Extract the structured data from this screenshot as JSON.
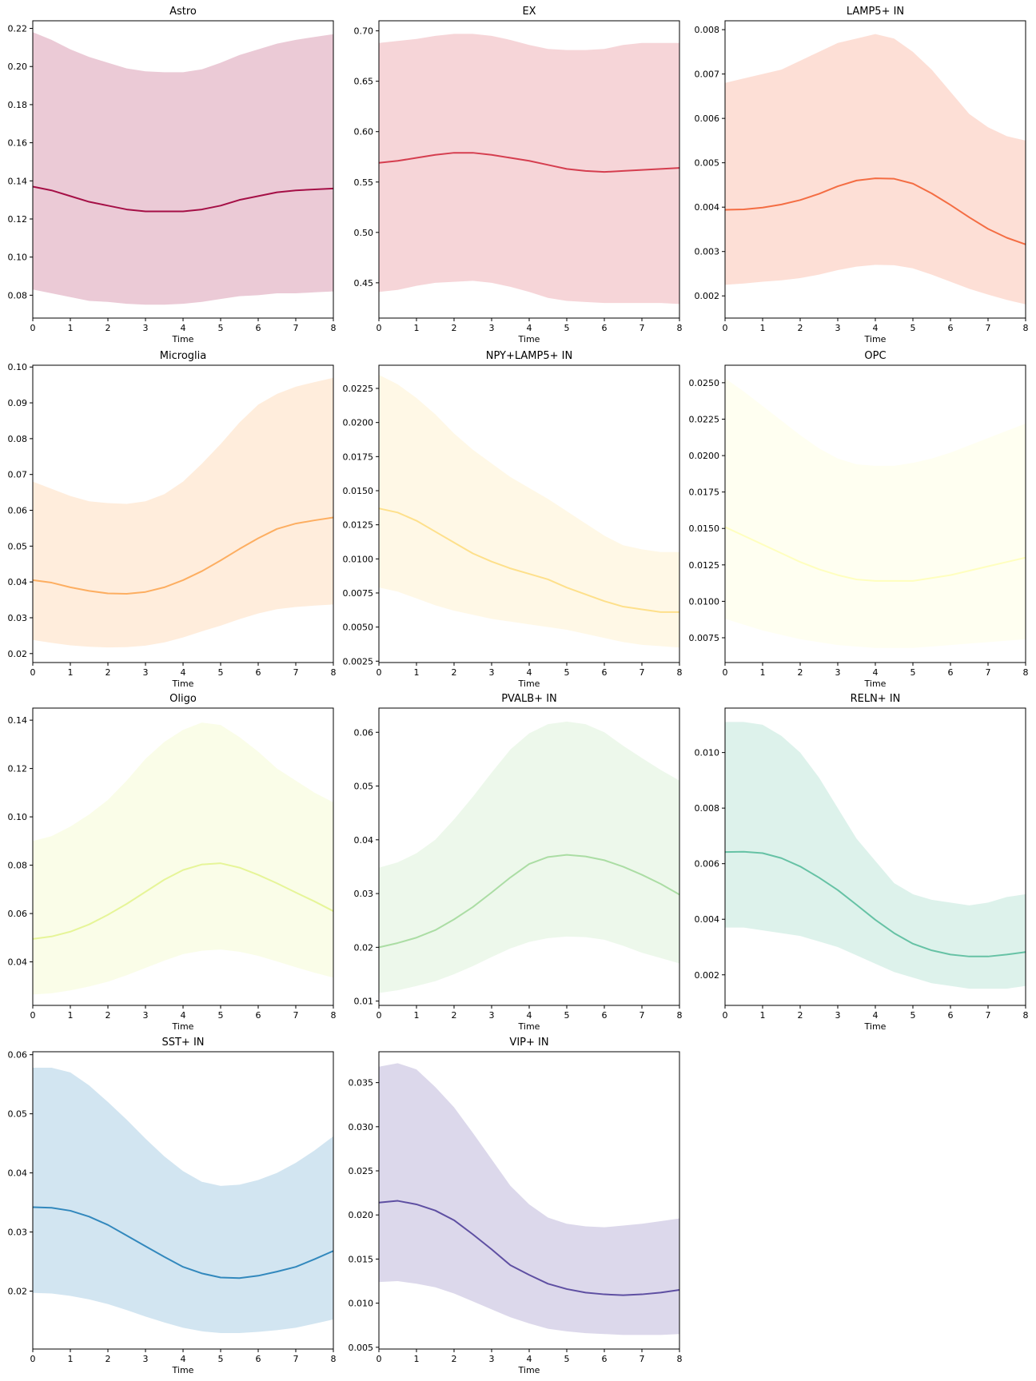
{
  "chart_data": [
    {
      "type": "line",
      "title": "Astro",
      "xlabel": "Time",
      "ylabel": "",
      "color": "#a50f46",
      "xlim": [
        0,
        8
      ],
      "ylim": [
        0.068,
        0.224
      ],
      "xticks": [
        0,
        1,
        2,
        3,
        4,
        5,
        6,
        7,
        8
      ],
      "yticks": [
        0.08,
        0.1,
        0.12,
        0.14,
        0.16,
        0.18,
        0.2,
        0.22
      ],
      "grid": false,
      "x": [
        0,
        0.5,
        1,
        1.5,
        2,
        2.5,
        3,
        3.5,
        4,
        4.5,
        5,
        5.5,
        6,
        6.5,
        7,
        7.5,
        8
      ],
      "mean": [
        0.137,
        0.135,
        0.132,
        0.129,
        0.127,
        0.125,
        0.124,
        0.124,
        0.124,
        0.125,
        0.127,
        0.13,
        0.132,
        0.134,
        0.135,
        0.1355,
        0.136
      ],
      "upper": [
        0.218,
        0.214,
        0.209,
        0.205,
        0.202,
        0.199,
        0.1975,
        0.197,
        0.197,
        0.1985,
        0.202,
        0.206,
        0.209,
        0.212,
        0.214,
        0.2155,
        0.217
      ],
      "lower": [
        0.083,
        0.081,
        0.079,
        0.077,
        0.0765,
        0.0755,
        0.075,
        0.075,
        0.0755,
        0.0765,
        0.078,
        0.0795,
        0.08,
        0.081,
        0.081,
        0.0815,
        0.082
      ]
    },
    {
      "type": "line",
      "title": "EX",
      "xlabel": "Time",
      "ylabel": "",
      "color": "#d53e4f",
      "xlim": [
        0,
        8
      ],
      "ylim": [
        0.415,
        0.71
      ],
      "xticks": [
        0,
        1,
        2,
        3,
        4,
        5,
        6,
        7,
        8
      ],
      "yticks": [
        0.45,
        0.5,
        0.55,
        0.6,
        0.65,
        0.7
      ],
      "grid": false,
      "x": [
        0,
        0.5,
        1,
        1.5,
        2,
        2.5,
        3,
        3.5,
        4,
        4.5,
        5,
        5.5,
        6,
        6.5,
        7,
        7.5,
        8
      ],
      "mean": [
        0.569,
        0.571,
        0.574,
        0.577,
        0.579,
        0.579,
        0.577,
        0.574,
        0.571,
        0.567,
        0.563,
        0.561,
        0.56,
        0.561,
        0.562,
        0.563,
        0.564
      ],
      "upper": [
        0.688,
        0.69,
        0.692,
        0.695,
        0.697,
        0.697,
        0.695,
        0.691,
        0.686,
        0.682,
        0.681,
        0.681,
        0.682,
        0.686,
        0.688,
        0.688,
        0.688
      ],
      "lower": [
        0.441,
        0.443,
        0.447,
        0.45,
        0.451,
        0.452,
        0.45,
        0.446,
        0.441,
        0.435,
        0.432,
        0.431,
        0.43,
        0.43,
        0.43,
        0.43,
        0.429
      ]
    },
    {
      "type": "line",
      "title": "LAMP5+ IN",
      "xlabel": "Time",
      "ylabel": "",
      "color": "#f46d43",
      "xlim": [
        0,
        8
      ],
      "ylim": [
        0.0015,
        0.0082
      ],
      "xticks": [
        0,
        1,
        2,
        3,
        4,
        5,
        6,
        7,
        8
      ],
      "yticks": [
        0.002,
        0.003,
        0.004,
        0.005,
        0.006,
        0.007,
        0.008
      ],
      "grid": false,
      "x": [
        0,
        0.5,
        1,
        1.5,
        2,
        2.5,
        3,
        3.5,
        4,
        4.5,
        5,
        5.5,
        6,
        6.5,
        7,
        7.5,
        8
      ],
      "mean": [
        0.00394,
        0.00395,
        0.00399,
        0.00406,
        0.00416,
        0.0043,
        0.00447,
        0.0046,
        0.00465,
        0.00464,
        0.00453,
        0.00431,
        0.00405,
        0.00377,
        0.00351,
        0.00331,
        0.00316
      ],
      "upper": [
        0.0068,
        0.0069,
        0.007,
        0.0071,
        0.0073,
        0.0075,
        0.0077,
        0.0078,
        0.0079,
        0.0078,
        0.0075,
        0.0071,
        0.0066,
        0.0061,
        0.0058,
        0.0056,
        0.0055
      ],
      "lower": [
        0.00225,
        0.00228,
        0.00232,
        0.00235,
        0.0024,
        0.00248,
        0.00258,
        0.00266,
        0.0027,
        0.00269,
        0.00262,
        0.00248,
        0.00232,
        0.00216,
        0.00203,
        0.00191,
        0.00181
      ]
    },
    {
      "type": "line",
      "title": "Microglia",
      "xlabel": "Time",
      "ylabel": "",
      "color": "#fdae61",
      "xlim": [
        0,
        8
      ],
      "ylim": [
        0.0175,
        0.1005
      ],
      "xticks": [
        0,
        1,
        2,
        3,
        4,
        5,
        6,
        7,
        8
      ],
      "yticks": [
        0.02,
        0.03,
        0.04,
        0.05,
        0.06,
        0.07,
        0.08,
        0.09,
        0.1
      ],
      "grid": false,
      "x": [
        0,
        0.5,
        1,
        1.5,
        2,
        2.5,
        3,
        3.5,
        4,
        4.5,
        5,
        5.5,
        6,
        6.5,
        7,
        7.5,
        8
      ],
      "mean": [
        0.0405,
        0.0398,
        0.0385,
        0.0375,
        0.0368,
        0.0367,
        0.0372,
        0.0385,
        0.0405,
        0.043,
        0.046,
        0.0492,
        0.0522,
        0.0548,
        0.0563,
        0.0572,
        0.058
      ],
      "upper": [
        0.068,
        0.066,
        0.064,
        0.0625,
        0.062,
        0.0618,
        0.0625,
        0.0645,
        0.068,
        0.073,
        0.0785,
        0.0845,
        0.0895,
        0.0925,
        0.0945,
        0.0958,
        0.097
      ],
      "lower": [
        0.0238,
        0.023,
        0.0223,
        0.0219,
        0.0217,
        0.0218,
        0.0222,
        0.0231,
        0.0245,
        0.0262,
        0.0278,
        0.0296,
        0.0312,
        0.0324,
        0.033,
        0.0334,
        0.0337
      ]
    },
    {
      "type": "line",
      "title": "NPY+LAMP5+ IN",
      "xlabel": "Time",
      "ylabel": "",
      "color": "#fee08b",
      "xlim": [
        0,
        8
      ],
      "ylim": [
        0.0024,
        0.0242
      ],
      "xticks": [
        0,
        1,
        2,
        3,
        4,
        5,
        6,
        7,
        8
      ],
      "yticks": [
        0.0025,
        0.005,
        0.0075,
        0.01,
        0.0125,
        0.015,
        0.0175,
        0.02,
        0.0225
      ],
      "grid": false,
      "x": [
        0,
        0.5,
        1,
        1.5,
        2,
        2.5,
        3,
        3.5,
        4,
        4.5,
        5,
        5.5,
        6,
        6.5,
        7,
        7.5,
        8
      ],
      "mean": [
        0.0137,
        0.0134,
        0.0128,
        0.012,
        0.0112,
        0.0104,
        0.0098,
        0.0093,
        0.0089,
        0.0085,
        0.0079,
        0.0074,
        0.0069,
        0.0065,
        0.0063,
        0.0061,
        0.0061
      ],
      "upper": [
        0.0235,
        0.0228,
        0.0218,
        0.0206,
        0.0192,
        0.018,
        0.017,
        0.016,
        0.0152,
        0.0144,
        0.0135,
        0.0126,
        0.0117,
        0.011,
        0.0107,
        0.0105,
        0.0105
      ],
      "lower": [
        0.0079,
        0.0076,
        0.0071,
        0.0066,
        0.0062,
        0.0059,
        0.0056,
        0.0054,
        0.0052,
        0.005,
        0.0048,
        0.0045,
        0.0042,
        0.0039,
        0.0037,
        0.0036,
        0.0035
      ]
    },
    {
      "type": "line",
      "title": "OPC",
      "xlabel": "Time",
      "ylabel": "",
      "color": "#ffffbf",
      "xlim": [
        0,
        8
      ],
      "ylim": [
        0.0058,
        0.0262
      ],
      "xticks": [
        0,
        1,
        2,
        3,
        4,
        5,
        6,
        7,
        8
      ],
      "yticks": [
        0.0075,
        0.01,
        0.0125,
        0.015,
        0.0175,
        0.02,
        0.0225,
        0.025
      ],
      "grid": false,
      "x": [
        0,
        0.5,
        1,
        1.5,
        2,
        2.5,
        3,
        3.5,
        4,
        4.5,
        5,
        5.5,
        6,
        6.5,
        7,
        7.5,
        8
      ],
      "mean": [
        0.0151,
        0.0145,
        0.0139,
        0.0133,
        0.0127,
        0.0122,
        0.0118,
        0.0115,
        0.0114,
        0.0114,
        0.0114,
        0.0116,
        0.0118,
        0.0121,
        0.0124,
        0.0127,
        0.013
      ],
      "upper": [
        0.0253,
        0.0244,
        0.0234,
        0.0224,
        0.0214,
        0.0205,
        0.0198,
        0.0194,
        0.0193,
        0.0193,
        0.0195,
        0.0198,
        0.0202,
        0.0207,
        0.0212,
        0.0217,
        0.0222
      ],
      "lower": [
        0.0088,
        0.0084,
        0.008,
        0.0077,
        0.0074,
        0.0072,
        0.007,
        0.0069,
        0.0068,
        0.0068,
        0.0068,
        0.0069,
        0.007,
        0.0071,
        0.0072,
        0.0073,
        0.0074
      ]
    },
    {
      "type": "line",
      "title": "Oligo",
      "xlabel": "Time",
      "ylabel": "",
      "color": "#e6f598",
      "xlim": [
        0,
        8
      ],
      "ylim": [
        0.022,
        0.145
      ],
      "xticks": [
        0,
        1,
        2,
        3,
        4,
        5,
        6,
        7,
        8
      ],
      "yticks": [
        0.04,
        0.06,
        0.08,
        0.1,
        0.12,
        0.14
      ],
      "grid": false,
      "x": [
        0,
        0.5,
        1,
        1.5,
        2,
        2.5,
        3,
        3.5,
        4,
        4.5,
        5,
        5.5,
        6,
        6.5,
        7,
        7.5,
        8
      ],
      "mean": [
        0.0495,
        0.0505,
        0.0525,
        0.0555,
        0.0595,
        0.064,
        0.069,
        0.074,
        0.078,
        0.0803,
        0.0808,
        0.079,
        0.076,
        0.0725,
        0.0687,
        0.065,
        0.061
      ],
      "upper": [
        0.09,
        0.092,
        0.096,
        0.101,
        0.107,
        0.115,
        0.124,
        0.131,
        0.136,
        0.139,
        0.138,
        0.133,
        0.127,
        0.12,
        0.115,
        0.11,
        0.106
      ],
      "lower": [
        0.0265,
        0.027,
        0.0282,
        0.0298,
        0.0318,
        0.0345,
        0.0375,
        0.0405,
        0.0432,
        0.0446,
        0.0451,
        0.0442,
        0.0425,
        0.0402,
        0.0378,
        0.0355,
        0.0335
      ]
    },
    {
      "type": "line",
      "title": "PVALB+ IN",
      "xlabel": "Time",
      "ylabel": "",
      "color": "#abdda4",
      "xlim": [
        0,
        8
      ],
      "ylim": [
        0.0092,
        0.0645
      ],
      "xticks": [
        0,
        1,
        2,
        3,
        4,
        5,
        6,
        7,
        8
      ],
      "yticks": [
        0.01,
        0.02,
        0.03,
        0.04,
        0.05,
        0.06
      ],
      "grid": false,
      "x": [
        0,
        0.5,
        1,
        1.5,
        2,
        2.5,
        3,
        3.5,
        4,
        4.5,
        5,
        5.5,
        6,
        6.5,
        7,
        7.5,
        8
      ],
      "mean": [
        0.02,
        0.0208,
        0.0218,
        0.0232,
        0.0252,
        0.0275,
        0.0302,
        0.033,
        0.0355,
        0.0368,
        0.0372,
        0.0369,
        0.0362,
        0.035,
        0.0335,
        0.0318,
        0.0298
      ],
      "upper": [
        0.0348,
        0.0358,
        0.0375,
        0.04,
        0.0438,
        0.048,
        0.0525,
        0.0568,
        0.0598,
        0.0615,
        0.062,
        0.0615,
        0.06,
        0.0575,
        0.0552,
        0.053,
        0.051
      ],
      "lower": [
        0.0115,
        0.012,
        0.0128,
        0.0137,
        0.015,
        0.0165,
        0.0182,
        0.0198,
        0.021,
        0.0217,
        0.022,
        0.0219,
        0.0214,
        0.0203,
        0.019,
        0.018,
        0.017
      ]
    },
    {
      "type": "line",
      "title": "RELN+ IN",
      "xlabel": "Time",
      "ylabel": "",
      "color": "#66c2a5",
      "xlim": [
        0,
        8
      ],
      "ylim": [
        0.0009,
        0.0116
      ],
      "xticks": [
        0,
        1,
        2,
        3,
        4,
        5,
        6,
        7,
        8
      ],
      "yticks": [
        0.002,
        0.004,
        0.006,
        0.008,
        0.01
      ],
      "grid": false,
      "x": [
        0,
        0.5,
        1,
        1.5,
        2,
        2.5,
        3,
        3.5,
        4,
        4.5,
        5,
        5.5,
        6,
        6.5,
        7,
        7.5,
        8
      ],
      "mean": [
        0.00642,
        0.00643,
        0.00638,
        0.0062,
        0.0059,
        0.0055,
        0.00505,
        0.00452,
        0.00398,
        0.0035,
        0.00312,
        0.00288,
        0.00273,
        0.00266,
        0.00266,
        0.00273,
        0.00282
      ],
      "upper": [
        0.0111,
        0.0111,
        0.011,
        0.0106,
        0.01,
        0.0091,
        0.008,
        0.0069,
        0.0061,
        0.0053,
        0.0049,
        0.0047,
        0.0046,
        0.0045,
        0.0046,
        0.0048,
        0.0049
      ],
      "lower": [
        0.0037,
        0.0037,
        0.0036,
        0.0035,
        0.0034,
        0.0032,
        0.003,
        0.0027,
        0.0024,
        0.0021,
        0.0019,
        0.0017,
        0.0016,
        0.0015,
        0.0015,
        0.0015,
        0.0016
      ]
    },
    {
      "type": "line",
      "title": "SST+ IN",
      "xlabel": "Time",
      "ylabel": "",
      "color": "#3288bd",
      "xlim": [
        0,
        8
      ],
      "ylim": [
        0.0102,
        0.0605
      ],
      "xticks": [
        0,
        1,
        2,
        3,
        4,
        5,
        6,
        7,
        8
      ],
      "yticks": [
        0.02,
        0.03,
        0.04,
        0.05,
        0.06
      ],
      "grid": false,
      "x": [
        0,
        0.5,
        1,
        1.5,
        2,
        2.5,
        3,
        3.5,
        4,
        4.5,
        5,
        5.5,
        6,
        6.5,
        7,
        7.5,
        8
      ],
      "mean": [
        0.0342,
        0.0341,
        0.0336,
        0.0326,
        0.0312,
        0.0294,
        0.0276,
        0.0258,
        0.0241,
        0.023,
        0.0223,
        0.0222,
        0.0226,
        0.0233,
        0.0241,
        0.0254,
        0.0268
      ],
      "upper": [
        0.0578,
        0.0578,
        0.057,
        0.0548,
        0.052,
        0.049,
        0.0458,
        0.0428,
        0.0403,
        0.0385,
        0.0378,
        0.038,
        0.0388,
        0.04,
        0.0417,
        0.0438,
        0.0462
      ],
      "lower": [
        0.0197,
        0.0196,
        0.0192,
        0.0186,
        0.0178,
        0.0168,
        0.0157,
        0.0147,
        0.0138,
        0.0132,
        0.0129,
        0.0129,
        0.0131,
        0.0134,
        0.0138,
        0.0145,
        0.0152
      ]
    },
    {
      "type": "line",
      "title": "VIP+ IN",
      "xlabel": "Time",
      "ylabel": "",
      "color": "#5e4fa2",
      "xlim": [
        0,
        8
      ],
      "ylim": [
        0.0048,
        0.0385
      ],
      "xticks": [
        0,
        1,
        2,
        3,
        4,
        5,
        6,
        7,
        8
      ],
      "yticks": [
        0.005,
        0.01,
        0.015,
        0.02,
        0.025,
        0.03,
        0.035
      ],
      "grid": false,
      "x": [
        0,
        0.5,
        1,
        1.5,
        2,
        2.5,
        3,
        3.5,
        4,
        4.5,
        5,
        5.5,
        6,
        6.5,
        7,
        7.5,
        8
      ],
      "mean": [
        0.0214,
        0.0216,
        0.0212,
        0.0205,
        0.0194,
        0.0178,
        0.0161,
        0.0143,
        0.0132,
        0.0122,
        0.0116,
        0.0112,
        0.011,
        0.0109,
        0.011,
        0.0112,
        0.0115
      ],
      "upper": [
        0.0368,
        0.0372,
        0.0365,
        0.0345,
        0.0322,
        0.0293,
        0.0263,
        0.0233,
        0.0212,
        0.0197,
        0.019,
        0.0187,
        0.0186,
        0.0188,
        0.019,
        0.0193,
        0.0196
      ],
      "lower": [
        0.0124,
        0.0125,
        0.0122,
        0.0118,
        0.0111,
        0.0102,
        0.0093,
        0.0084,
        0.0077,
        0.0071,
        0.0068,
        0.0066,
        0.0065,
        0.0064,
        0.0064,
        0.0064,
        0.0065
      ]
    }
  ]
}
